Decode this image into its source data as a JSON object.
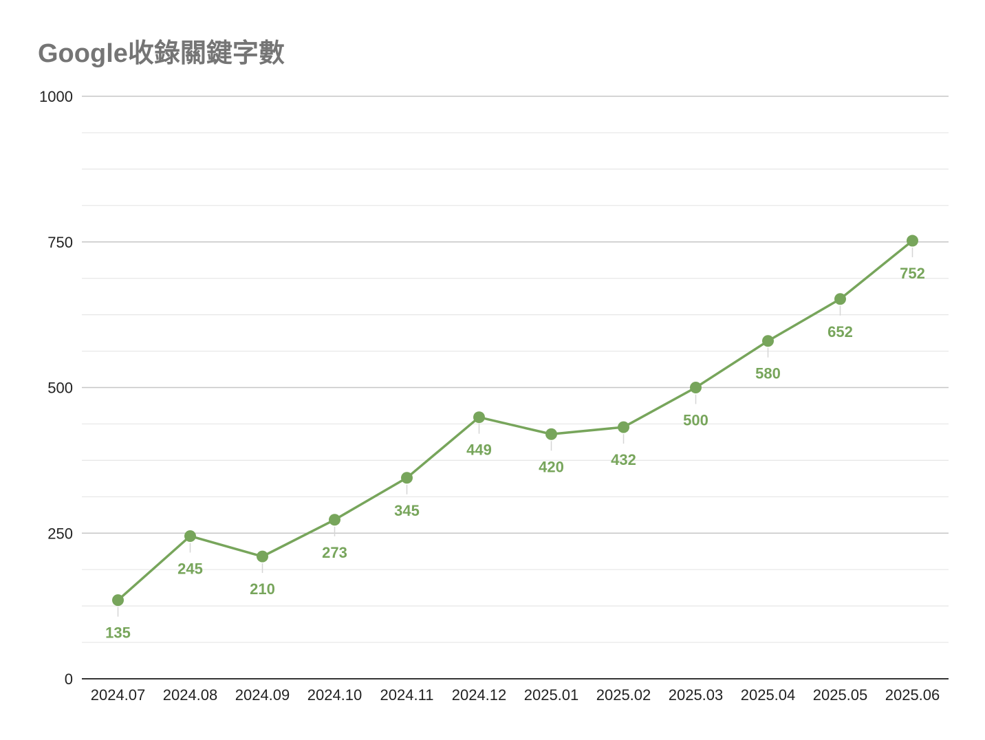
{
  "chart_data": {
    "type": "line",
    "title": "Google收錄關鍵字數",
    "xlabel": "",
    "ylabel": "",
    "categories": [
      "2024.07",
      "2024.08",
      "2024.09",
      "2024.10",
      "2024.11",
      "2024.12",
      "2025.01",
      "2025.02",
      "2025.03",
      "2025.04",
      "2025.05",
      "2025.06"
    ],
    "series": [
      {
        "values": [
          135,
          245,
          210,
          273,
          345,
          449,
          420,
          432,
          500,
          580,
          652,
          752
        ],
        "color": "#77a55b"
      }
    ],
    "ylim": [
      0,
      1000
    ],
    "yticks": [
      0,
      250,
      500,
      750,
      1000
    ],
    "minor_gridlines_per_major": 3,
    "grid": true,
    "legend": "none",
    "data_labels": "below",
    "colors": {
      "line": "#77a55b",
      "label": "#77a55b",
      "title": "#757575",
      "major_grid": "#c6c6c6",
      "minor_grid": "#e6e6e6",
      "axis": "#333333",
      "ticks": "#222222"
    }
  }
}
